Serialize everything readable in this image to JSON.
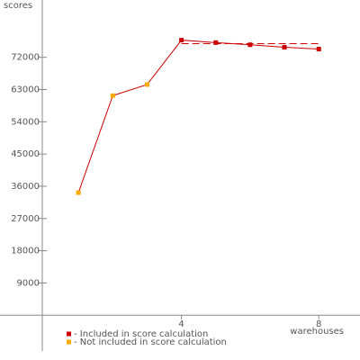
{
  "chart_data": {
    "type": "line",
    "y_label": "scores",
    "x_label": "warehouses",
    "x": [
      1,
      2,
      3,
      4,
      5,
      6,
      7,
      8
    ],
    "values": [
      34200,
      61300,
      64400,
      76800,
      76100,
      75500,
      74800,
      74300
    ],
    "line_color": "#cc0000",
    "point_colors": [
      "#ffaa00",
      "#ffaa00",
      "#ffaa00",
      "#cc0000",
      "#cc0000",
      "#cc0000",
      "#cc0000",
      "#cc0000"
    ],
    "reference_line": {
      "value": 75800,
      "x": [
        4,
        8
      ],
      "color": "#cc0000"
    },
    "xlim": [
      0,
      9.2
    ],
    "ylim": [
      -10000,
      88000
    ],
    "xticks": [
      4,
      8
    ],
    "yticks": [
      9000,
      18000,
      27000,
      36000,
      45000,
      54000,
      63000,
      72000
    ],
    "legend": [
      {
        "label": "- Included in score calculation",
        "color": "#cc0000"
      },
      {
        "label": "- Not included in score calculation",
        "color": "#ffaa00"
      }
    ]
  }
}
